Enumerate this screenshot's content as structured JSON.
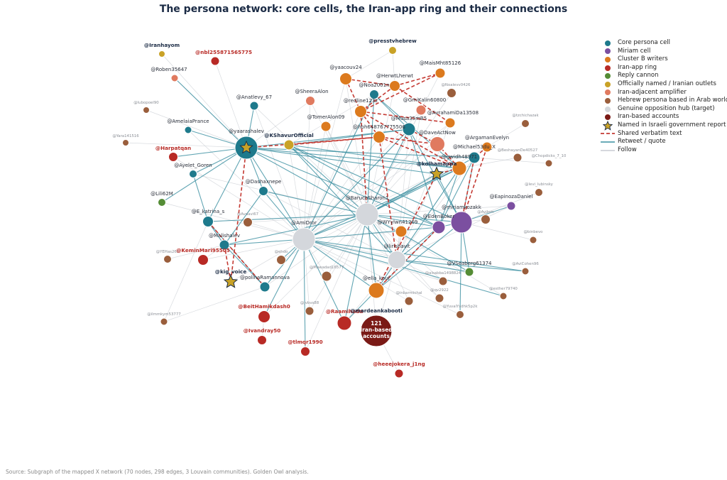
{
  "title": "The persona network: core cells, the Iran-app ring and their connections",
  "source": "Source: Subgraph of the mapped X network (70 nodes, 298 edges, 3 Louvain communities). Golden Owl analysis.",
  "colors": {
    "core": "#1e7a8c",
    "miriam": "#7b4fa0",
    "clusterB": "#dc7a1e",
    "iranApp": "#b82a25",
    "reply": "#548c35",
    "official": "#c9a227",
    "iranAdj": "#e07a5f",
    "hebArab": "#9a5e3c",
    "hub": "#d4d7dc",
    "iranBased": "#7a1a16",
    "shared": "#c43a33",
    "retweet": "#3a8fa0",
    "follow": "#c8ccd2"
  },
  "legend": [
    {
      "type": "dot",
      "cls": "core",
      "label": "Core persona cell"
    },
    {
      "type": "dot",
      "cls": "miriam",
      "label": "Miriam cell"
    },
    {
      "type": "dot",
      "cls": "clusterB",
      "label": "Cluster B writers"
    },
    {
      "type": "dot",
      "cls": "iranApp",
      "label": "Iran-app ring"
    },
    {
      "type": "dot",
      "cls": "reply",
      "label": "Reply cannon"
    },
    {
      "type": "dot",
      "cls": "official",
      "label": "Officially named / Iranian outlets"
    },
    {
      "type": "dot",
      "cls": "iranAdj",
      "label": "Iran-adjacent amplifier"
    },
    {
      "type": "dot",
      "cls": "hebArab",
      "label": "Hebrew persona based in Arab world"
    },
    {
      "type": "dot",
      "cls": "hub",
      "label": "Genuine opposition hub (target)"
    },
    {
      "type": "dot",
      "cls": "iranBased",
      "label": "Iran-based accounts"
    },
    {
      "type": "star",
      "label": "Named in Israeli government report"
    },
    {
      "type": "dash",
      "label": "Shared verbatim text"
    },
    {
      "type": "line",
      "label": "Retweet / quote"
    },
    {
      "type": "follow",
      "label": "Follow"
    }
  ],
  "nodes": [
    {
      "id": "iranhayom",
      "label": "@Iranhayom",
      "cls": "official",
      "lab": "dark"
    },
    {
      "id": "nbl",
      "label": "@nbl255871565775",
      "cls": "iranApp",
      "lab": "red"
    },
    {
      "id": "roben",
      "label": "@Roben35647",
      "cls": "iranAdj",
      "lab": "norm"
    },
    {
      "id": "presstv",
      "label": "@presstvhebrew",
      "cls": "official",
      "lab": "dark"
    },
    {
      "id": "maismht",
      "label": "@MaisMht85126",
      "cls": "clusterB",
      "lab": "norm"
    },
    {
      "id": "yaacouv",
      "label": "@yaacouv24",
      "cls": "clusterB",
      "lab": "norm"
    },
    {
      "id": "herwt",
      "label": "@HerwtLherwt",
      "cls": "clusterB",
      "lab": "norm"
    },
    {
      "id": "noalev",
      "label": "@Noalevv0426",
      "cls": "hebArab",
      "lab": "faint"
    },
    {
      "id": "sheera",
      "label": "@SheeraAlon",
      "cls": "iranAdj",
      "lab": "norm"
    },
    {
      "id": "noa",
      "label": "@Noa2001n",
      "cls": "core",
      "lab": "norm"
    },
    {
      "id": "anatlevy",
      "label": "@Anatlevy_67",
      "cls": "core",
      "lab": "norm"
    },
    {
      "id": "redline",
      "label": "@redline123z",
      "cls": "clusterB",
      "lab": "norm"
    },
    {
      "id": "gmikalin",
      "label": "@GmiKalin60800",
      "cls": "iranAdj",
      "lab": "norm"
    },
    {
      "id": "avrahami",
      "label": "@AvrahamiDa13508",
      "cls": "clusterB",
      "lab": "norm"
    },
    {
      "id": "tzachi",
      "label": "@tzchichazak",
      "cls": "hebArab",
      "lab": "faint"
    },
    {
      "id": "lubopoel",
      "label": "@lubopoel90",
      "cls": "hebArab",
      "lab": "faint"
    },
    {
      "id": "amelaia",
      "label": "@AmelaiaPrance",
      "cls": "core",
      "lab": "norm"
    },
    {
      "id": "tomer",
      "label": "@TomerAlon09",
      "cls": "clusterB",
      "lab": "norm"
    },
    {
      "id": "musa",
      "label": "@Musa35mB5",
      "cls": "core",
      "lab": "norm"
    },
    {
      "id": "hbh",
      "label": "@hbh648767775506",
      "cls": "clusterB",
      "lab": "norm"
    },
    {
      "id": "daveact",
      "label": "@DaveActNow",
      "cls": "iranAdj",
      "lab": "norm"
    },
    {
      "id": "yaarash",
      "label": "@yaarashalev",
      "cls": "core",
      "lab": "norm"
    },
    {
      "id": "yara",
      "label": "@Yara141516",
      "cls": "hebArab",
      "lab": "faint"
    },
    {
      "id": "kshavur",
      "label": "@KShavurOfficial",
      "cls": "official",
      "lab": "dark"
    },
    {
      "id": "argaman",
      "label": "@ArgamanEvelyn",
      "cls": "clusterB",
      "lab": "norm"
    },
    {
      "id": "michael",
      "label": "@Michael53du_X",
      "cls": "core",
      "lab": "norm"
    },
    {
      "id": "beshayan",
      "label": "@BeshayanDe40527",
      "cls": "hebArab",
      "lab": "faint"
    },
    {
      "id": "chopdicks",
      "label": "@Chopdicks_7_10",
      "cls": "hebArab",
      "lab": "faint"
    },
    {
      "id": "harpatqan",
      "label": "@Harpatqan",
      "cls": "iranApp",
      "lab": "red"
    },
    {
      "id": "gwidh",
      "label": "@gwidh48971",
      "cls": "clusterB",
      "lab": "norm"
    },
    {
      "id": "kolhamappa",
      "label": "@kolhamappa",
      "cls": "official",
      "lab": "dark",
      "star": true
    },
    {
      "id": "ayelet",
      "label": "@Ayelet_Goren",
      "cls": "core",
      "lab": "norm"
    },
    {
      "id": "dashax",
      "label": "@Dashaxnepe",
      "cls": "core",
      "lab": "norm"
    },
    {
      "id": "levi",
      "label": "@levi_lubinsky",
      "cls": "hebArab",
      "lab": "faint"
    },
    {
      "id": "lili",
      "label": "@Lili62M",
      "cls": "reply",
      "lab": "norm"
    },
    {
      "id": "baruch",
      "label": "@BaruchSharon1",
      "cls": "hub",
      "lab": "norm"
    },
    {
      "id": "epinoza",
      "label": "@EapinozaDaniel",
      "cls": "miriam",
      "lab": "norm"
    },
    {
      "id": "miriam",
      "label": "@miriamkozakk",
      "cls": "miriam",
      "lab": "norm"
    },
    {
      "id": "ekatrina",
      "label": "@E_katrina_s",
      "cls": "core",
      "lab": "norm"
    },
    {
      "id": "avdavi",
      "label": "@Avdavi67",
      "cls": "hebArab",
      "lab": "faint"
    },
    {
      "id": "amidror",
      "label": "@AmiDror",
      "cls": "hub",
      "lab": "norm"
    },
    {
      "id": "edenboker",
      "label": "@EdenBoker",
      "cls": "miriam",
      "lab": "norm"
    },
    {
      "id": "avilom",
      "label": "@Avilom",
      "cls": "hebArab",
      "lab": "faint"
    },
    {
      "id": "wyylwn",
      "label": "@WYylwn41269",
      "cls": "clusterB",
      "lab": "norm"
    },
    {
      "id": "binbevo",
      "label": "@binbevo",
      "cls": "hebArab",
      "lab": "faint"
    },
    {
      "id": "malishalev",
      "label": "@Malishalev",
      "cls": "core",
      "lab": "norm"
    },
    {
      "id": "lirishavit",
      "label": "@lirishavit",
      "cls": "hub",
      "lab": "norm"
    },
    {
      "id": "ytehas",
      "label": "@YEHas261",
      "cls": "hebArab",
      "lab": "faint"
    },
    {
      "id": "kemin",
      "label": "@KeminMari95505",
      "cls": "iranApp",
      "lab": "red"
    },
    {
      "id": "ehdo",
      "label": "@ehdo",
      "cls": "hebArab",
      "lab": "faint"
    },
    {
      "id": "vseaberg",
      "label": "@VSeaberg61374",
      "cls": "reply",
      "lab": "norm"
    },
    {
      "id": "avicohen",
      "label": "@AviCohen96",
      "cls": "hebArab",
      "lab": "faint"
    },
    {
      "id": "mawadad",
      "label": "@Mawadad16577",
      "cls": "hebArab",
      "lab": "faint"
    },
    {
      "id": "kig",
      "label": "@kig_voice",
      "cls": "official",
      "lab": "dark",
      "star": true
    },
    {
      "id": "polina",
      "label": "@polinaRamannova",
      "cls": "core",
      "lab": "norm"
    },
    {
      "id": "ellakauf",
      "label": "@ella_kauf",
      "cls": "clusterB",
      "lab": "norm"
    },
    {
      "id": "alsabba",
      "label": "@alsabba1498824",
      "cls": "hebArab",
      "lab": "faint"
    },
    {
      "id": "esther",
      "label": "@esther79740",
      "cls": "hebArab",
      "lab": "faint"
    },
    {
      "id": "inbarmichal",
      "label": "@inbarmichal",
      "cls": "hebArab",
      "lab": "faint"
    },
    {
      "id": "qv2922",
      "label": "@qv2922",
      "cls": "hebArab",
      "lab": "faint"
    },
    {
      "id": "jvbvs",
      "label": "@jvbvs88",
      "cls": "hebArab",
      "lab": "faint"
    },
    {
      "id": "beithami",
      "label": "@BeitHamikdash0",
      "cls": "iranApp",
      "lab": "red"
    },
    {
      "id": "raamihada",
      "label": "@Raamihada",
      "cls": "iranApp",
      "lab": "red"
    },
    {
      "id": "mardean",
      "label": "@mardeankabooti",
      "cls": "official",
      "lab": "dark"
    },
    {
      "id": "yuvalyh",
      "label": "@YuvalYsdhk5p2k",
      "cls": "hebArab",
      "lab": "faint"
    },
    {
      "id": "ilmmkym",
      "label": "@ilmmkym53777",
      "cls": "hebArab",
      "lab": "faint"
    },
    {
      "id": "ivandray",
      "label": "@Ivandray50",
      "cls": "iranApp",
      "lab": "red"
    },
    {
      "id": "tlmqr",
      "label": "@tlmqr1990",
      "cls": "iranApp",
      "lab": "red"
    },
    {
      "id": "iranbased",
      "label": "",
      "cls": "iranBased",
      "lab": "none",
      "inner": [
        "121",
        "Iran-based",
        "accounts"
      ]
    },
    {
      "id": "heeejokera",
      "label": "@heeejokera_j1ng",
      "cls": "iranApp",
      "lab": "red"
    }
  ]
}
